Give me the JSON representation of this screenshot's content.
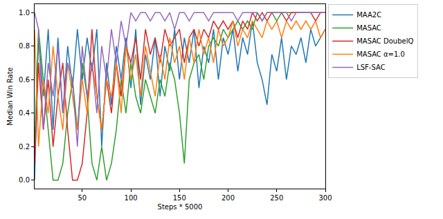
{
  "chart_data": {
    "type": "line",
    "x_label": "Steps * 5000",
    "y_label": "Median Win Rate",
    "x": [
      1,
      5,
      10,
      15,
      20,
      25,
      30,
      35,
      40,
      45,
      50,
      55,
      60,
      65,
      70,
      75,
      80,
      85,
      90,
      95,
      100,
      105,
      110,
      115,
      120,
      125,
      130,
      135,
      140,
      145,
      150,
      155,
      160,
      165,
      170,
      175,
      180,
      185,
      190,
      195,
      200,
      205,
      210,
      215,
      220,
      225,
      230,
      235,
      240,
      245,
      250,
      255,
      260,
      265,
      270,
      275,
      280,
      285,
      290,
      295,
      300
    ],
    "series": [
      {
        "name": "MAA2C",
        "color": "#1f77b4",
        "values": [
          0.0,
          0.85,
          0.5,
          0.9,
          0.3,
          0.85,
          0.4,
          0.8,
          0.55,
          0.9,
          0.6,
          0.85,
          0.65,
          0.9,
          0.2,
          0.7,
          0.45,
          0.8,
          0.6,
          0.85,
          0.55,
          0.9,
          0.45,
          0.75,
          0.6,
          0.85,
          0.5,
          0.8,
          0.65,
          0.9,
          0.6,
          0.85,
          0.7,
          0.9,
          0.55,
          0.8,
          0.7,
          0.9,
          0.6,
          0.85,
          0.75,
          0.9,
          0.65,
          0.85,
          0.75,
          0.95,
          0.7,
          0.6,
          0.45,
          0.75,
          0.65,
          0.85,
          0.6,
          0.8,
          0.75,
          0.85,
          0.7,
          0.9,
          0.8,
          0.85,
          0.9
        ]
      },
      {
        "name": "MASAC",
        "color": "#2ca02c",
        "values": [
          0.2,
          0.9,
          0.6,
          0.3,
          0.0,
          0.0,
          0.1,
          0.4,
          0.6,
          0.3,
          0.7,
          0.5,
          0.1,
          0.0,
          0.2,
          0.0,
          0.1,
          0.3,
          0.6,
          0.4,
          0.7,
          0.5,
          0.4,
          0.6,
          0.5,
          0.4,
          0.6,
          0.5,
          0.7,
          0.6,
          0.4,
          0.1,
          0.6,
          0.7,
          0.75,
          0.6,
          0.8,
          0.85,
          0.8,
          0.9,
          0.85,
          0.9,
          0.95,
          0.9,
          0.95,
          0.9,
          1.0,
          0.95,
          1.0,
          1.0,
          0.95,
          1.0,
          1.0,
          1.0,
          1.0,
          1.0,
          1.0,
          1.0,
          1.0,
          1.0,
          1.0
        ]
      },
      {
        "name": "MASAC DoubelQ",
        "color": "#d62728",
        "values": [
          0.1,
          0.7,
          0.3,
          0.6,
          0.2,
          0.5,
          0.7,
          0.3,
          0.0,
          0.0,
          0.1,
          0.4,
          0.9,
          0.5,
          0.3,
          0.6,
          0.4,
          0.7,
          0.5,
          0.8,
          0.7,
          0.85,
          0.6,
          0.9,
          0.75,
          0.85,
          0.7,
          0.9,
          0.8,
          0.85,
          0.9,
          0.7,
          0.85,
          0.9,
          0.8,
          0.9,
          0.85,
          0.95,
          0.9,
          0.95,
          0.9,
          0.95,
          0.85,
          0.95,
          0.9,
          1.0,
          0.95,
          1.0,
          0.95,
          1.0,
          1.0,
          1.0,
          0.95,
          1.0,
          1.0,
          1.0,
          1.0,
          1.0,
          0.95,
          1.0,
          1.0
        ]
      },
      {
        "name": "MASAC α=1.0",
        "color": "#ff7f0e",
        "values": [
          0.9,
          0.2,
          0.6,
          0.4,
          0.8,
          0.5,
          0.3,
          0.7,
          0.5,
          0.3,
          0.6,
          0.4,
          0.7,
          0.5,
          0.3,
          0.6,
          0.5,
          0.7,
          0.4,
          0.8,
          0.6,
          0.75,
          0.5,
          0.8,
          0.65,
          0.5,
          0.75,
          0.6,
          0.85,
          0.7,
          0.8,
          0.6,
          0.85,
          0.7,
          0.9,
          0.75,
          0.85,
          0.7,
          0.9,
          0.8,
          0.85,
          0.95,
          0.8,
          0.9,
          0.85,
          0.95,
          0.9,
          0.85,
          0.95,
          0.9,
          0.95,
          0.85,
          0.95,
          0.9,
          0.95,
          0.9,
          0.95,
          0.9,
          0.95,
          0.85,
          0.9
        ]
      },
      {
        "name": "LSF-SAC",
        "color": "#9467bd",
        "values": [
          1.0,
          0.9,
          0.3,
          0.7,
          0.5,
          0.8,
          0.4,
          0.7,
          0.6,
          0.2,
          0.8,
          0.5,
          0.7,
          0.4,
          0.8,
          0.6,
          0.9,
          0.7,
          0.95,
          0.8,
          1.0,
          0.95,
          1.0,
          1.0,
          0.95,
          1.0,
          1.0,
          0.95,
          1.0,
          0.9,
          1.0,
          1.0,
          0.95,
          1.0,
          1.0,
          1.0,
          0.95,
          1.0,
          1.0,
          1.0,
          1.0,
          1.0,
          0.95,
          1.0,
          1.0,
          1.0,
          1.0,
          0.95,
          1.0,
          1.0,
          1.0,
          1.0,
          1.0,
          0.95,
          1.0,
          1.0,
          1.0,
          1.0,
          1.0,
          1.0,
          1.0
        ]
      }
    ],
    "xlim": [
      1,
      300
    ],
    "xticks": [
      50,
      100,
      150,
      200,
      250,
      300
    ],
    "ylim": [
      -0.05,
      1.05
    ],
    "yticks": [
      {
        "value": 0,
        "label": "0.0"
      },
      {
        "value": 0.2,
        "label": "0.2"
      },
      {
        "value": 0.4,
        "label": "0.4"
      },
      {
        "value": 0.6,
        "label": "0.6"
      },
      {
        "value": 0.8,
        "label": "0.8"
      },
      {
        "value": 1,
        "label": "1.0"
      }
    ],
    "grid": false,
    "legend": "upper right"
  }
}
